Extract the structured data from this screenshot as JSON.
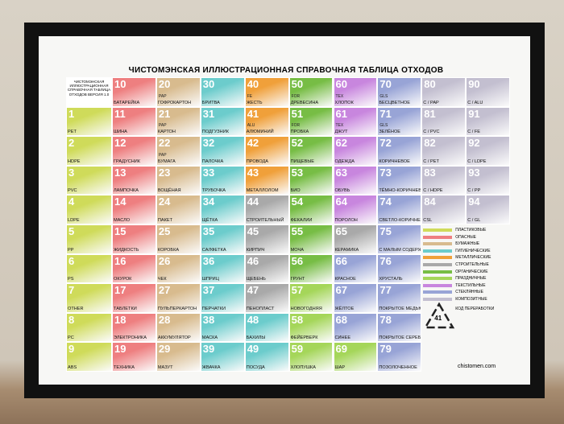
{
  "poster": {
    "title": "ЧИСТОМЭНСКАЯ ИЛЛЮСТРАЦИОННАЯ СПРАВОЧНАЯ ТАБЛИЦА ОТХОДОВ",
    "corner": "ЧИСТОМЭНСКАЯ ИЛЛЮСТРАЦИОННАЯ СПРАВОЧНАЯ ТАБЛИЦА ОТХОДОВ ВЕРСИЯ 1.0",
    "rows": [
      [
        {
          "code": "10",
          "name": "БАТАРЕЙКА"
        },
        {
          "code": "20",
          "tag": "PAP",
          "name": "ГОФРОКАРТОН"
        },
        {
          "code": "30",
          "name": "БРИТВА"
        },
        {
          "code": "40",
          "tag": "FE",
          "name": "ЖЕСТЬ"
        },
        {
          "code": "50",
          "tag": "FOR",
          "name": "ДРЕВЕСИНА"
        },
        {
          "code": "60",
          "tag": "TEX",
          "name": "ХЛОПОК"
        },
        {
          "code": "70",
          "tag": "GLS",
          "name": "БЕСЦВЕТНОЕ"
        },
        {
          "code": "80",
          "name": "C / PAP"
        },
        {
          "code": "90",
          "name": "C / ALU"
        }
      ],
      [
        {
          "code": "1",
          "name": "PET"
        },
        {
          "code": "11",
          "name": "ШИНА"
        },
        {
          "code": "21",
          "tag": "PAP",
          "name": "КАРТОН"
        },
        {
          "code": "31",
          "name": "ПОДГУЗНИК"
        },
        {
          "code": "41",
          "tag": "ALU",
          "name": "АЛЮМИНИЙ"
        },
        {
          "code": "51",
          "tag": "FOR",
          "name": "ПРОБКА"
        },
        {
          "code": "61",
          "tag": "TEX",
          "name": "ДЖУТ"
        },
        {
          "code": "71",
          "tag": "GLS",
          "name": "ЗЕЛЁНОЕ"
        },
        {
          "code": "81",
          "name": "C / PVC"
        },
        {
          "code": "91",
          "name": "C / FE"
        }
      ],
      [
        {
          "code": "2",
          "name": "HDPE"
        },
        {
          "code": "12",
          "name": "ГРАДУСНИК"
        },
        {
          "code": "22",
          "tag": "PAP",
          "name": "БУМАГА"
        },
        {
          "code": "32",
          "name": "ПАЛОЧКА"
        },
        {
          "code": "42",
          "name": "ПРОВОДА"
        },
        {
          "code": "52",
          "name": "ПИЩЕВЫЕ"
        },
        {
          "code": "62",
          "name": "ОДЕЖДА"
        },
        {
          "code": "72",
          "name": "КОРИЧНЕВОЕ"
        },
        {
          "code": "82",
          "name": "C / PET"
        },
        {
          "code": "92",
          "name": "C / LDPE"
        }
      ],
      [
        {
          "code": "3",
          "name": "PVC"
        },
        {
          "code": "13",
          "name": "ЛАМПОЧКА"
        },
        {
          "code": "23",
          "name": "ВОЩЁНАЯ"
        },
        {
          "code": "33",
          "name": "ТРУБОЧКА"
        },
        {
          "code": "43",
          "name": "МЕТАЛЛОЛОМ"
        },
        {
          "code": "53",
          "name": "БИО"
        },
        {
          "code": "63",
          "name": "ОБУВЬ"
        },
        {
          "code": "73",
          "name": "ТЁМНО-КОРИЧНЕВОЕ"
        },
        {
          "code": "83",
          "name": "C / HDPE"
        },
        {
          "code": "93",
          "name": "C / PP"
        }
      ],
      [
        {
          "code": "4",
          "name": "LDPE"
        },
        {
          "code": "14",
          "name": "МАСЛО"
        },
        {
          "code": "24",
          "name": "ПАКЕТ"
        },
        {
          "code": "34",
          "name": "ЩЁТКА"
        },
        {
          "code": "44",
          "name": "СТРОИТЕЛЬНЫЙ"
        },
        {
          "code": "54",
          "name": "ФЕКАЛИИ"
        },
        {
          "code": "64",
          "name": "ПОРОЛОН"
        },
        {
          "code": "74",
          "name": "СВЕТЛО-КОРИЧНЕВОЕ"
        },
        {
          "code": "84",
          "name": "CSL"
        },
        {
          "code": "94",
          "name": "C / GL"
        }
      ],
      [
        {
          "code": "5",
          "name": "PP"
        },
        {
          "code": "15",
          "name": "ЖИДКОСТЬ"
        },
        {
          "code": "25",
          "name": "КОРОБКА"
        },
        {
          "code": "35",
          "name": "САЛФЕТКА"
        },
        {
          "code": "45",
          "name": "КИРПИЧ"
        },
        {
          "code": "55",
          "name": "МОЧА"
        },
        {
          "code": "65",
          "name": "КЕРАМИКА"
        },
        {
          "code": "75",
          "name": "С МАЛЫМ СОДЕРЖАНИЕМ СВИНЦА"
        }
      ],
      [
        {
          "code": "6",
          "name": "PS"
        },
        {
          "code": "16",
          "name": "ОКУРОК"
        },
        {
          "code": "26",
          "name": "ЧЕК"
        },
        {
          "code": "36",
          "name": "ШПРИЦ"
        },
        {
          "code": "46",
          "name": "ЩЕБЕНЬ"
        },
        {
          "code": "56",
          "name": "ГРУНТ"
        },
        {
          "code": "66",
          "name": "КРАСНОЕ"
        },
        {
          "code": "76",
          "name": "ХРУСТАЛЬ"
        }
      ],
      [
        {
          "code": "7",
          "name": "OTHER"
        },
        {
          "code": "17",
          "name": "ТАБЛЕТКИ"
        },
        {
          "code": "27",
          "name": "ПУЛЬПЕРКАРТОН"
        },
        {
          "code": "37",
          "name": "ПЕРЧАТКИ"
        },
        {
          "code": "47",
          "name": "ПЕНОПЛАСТ"
        },
        {
          "code": "57",
          "name": "НОВОГОДНЯЯ"
        },
        {
          "code": "67",
          "name": "ЖЁЛТОЕ"
        },
        {
          "code": "77",
          "name": "ПОКРЫТОЕ МЕДЬЮ"
        }
      ],
      [
        {
          "code": "8",
          "name": "PC"
        },
        {
          "code": "18",
          "name": "ЭЛЕКТРОНИКА"
        },
        {
          "code": "28",
          "name": "АККУМУЛЯТОР"
        },
        {
          "code": "38",
          "name": "МАСКА"
        },
        {
          "code": "48",
          "name": "БАХИЛЫ"
        },
        {
          "code": "58",
          "name": "ФЕЙЕРВЕРК"
        },
        {
          "code": "68",
          "name": "СИНЕЕ"
        },
        {
          "code": "78",
          "name": "ПОКРЫТОЕ СЕРЕБРОМ"
        }
      ],
      [
        {
          "code": "9",
          "name": "ABS"
        },
        {
          "code": "19",
          "name": "ТЕХНИКА"
        },
        {
          "code": "29",
          "name": "МАЗУТ"
        },
        {
          "code": "39",
          "name": "ЖВАЧКА"
        },
        {
          "code": "49",
          "name": "ПОСУДА"
        },
        {
          "code": "59",
          "name": "ХЛОПУШКА"
        },
        {
          "code": "69",
          "name": "ШАР"
        },
        {
          "code": "79",
          "name": "ПОЗОЛОЧЕННОЕ"
        }
      ]
    ],
    "legend": [
      "ПЛАСТИКОВЫЕ",
      "ОПАСНЫЕ",
      "БУМАЖНЫЕ",
      "ГИГИЕНИЧЕСКИЕ",
      "МЕТАЛЛИЧЕСКИЕ",
      "СТРОИТЕЛЬНЫЕ",
      "ОРГАНИЧЕСКИЕ",
      "ПРАЗДНИЧНЫЕ",
      "ТЕКСТИЛЬНЫЕ",
      "СТЕКЛЯННЫЕ",
      "КОМПОЗИТНЫЕ"
    ],
    "recycle_caption": "КОД ПЕРЕРАБОТКИ",
    "recycle_code": "41",
    "site": "chistomen.com"
  }
}
